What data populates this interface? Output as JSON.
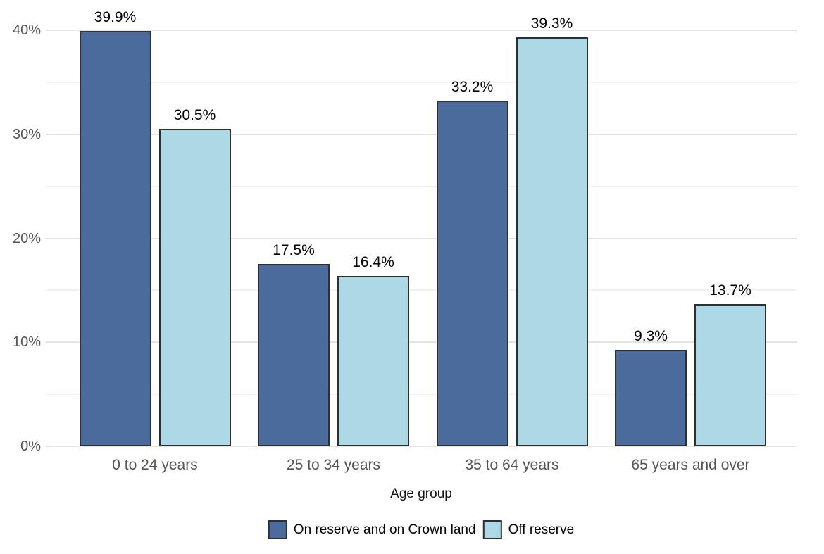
{
  "chart_data": {
    "type": "bar",
    "title": "",
    "xlabel": "Age group",
    "ylabel": "",
    "categories": [
      "0 to 24 years",
      "25 to 34 years",
      "35 to 64 years",
      "65 years and over"
    ],
    "series": [
      {
        "name": "On reserve and on Crown land",
        "color": "#4b6b9c",
        "values": [
          39.9,
          17.5,
          33.2,
          9.3
        ],
        "labels": [
          "39.9%",
          "17.5%",
          "33.2%",
          "9.3%"
        ]
      },
      {
        "name": "Off reserve",
        "color": "#add8e6",
        "values": [
          30.5,
          16.4,
          39.3,
          13.7
        ],
        "labels": [
          "30.5%",
          "16.4%",
          "39.3%",
          "13.7%"
        ]
      }
    ],
    "ylim": [
      0,
      40
    ],
    "yticks": [
      0,
      10,
      20,
      30,
      40
    ],
    "ytick_labels": [
      "0%",
      "10%",
      "20%",
      "30%",
      "40%"
    ],
    "minor_yticks": [
      5,
      15,
      25,
      35
    ],
    "grid": "horizontal",
    "legend_position": "bottom",
    "bar_border_color": "#2f2f2f",
    "gridline_major_color": "#e4e4e4",
    "gridline_minor_color": "#f2f2f2",
    "axis_text_color": "#545454",
    "value_labels_shown": true
  }
}
